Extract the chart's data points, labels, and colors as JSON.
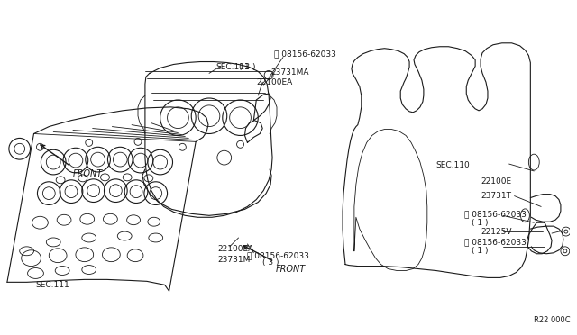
{
  "background_color": "#ffffff",
  "line_color": "#1a1a1a",
  "fig_width": 6.4,
  "fig_height": 3.72,
  "dpi": 100,
  "annotations": {
    "b_bolt_top": "Ⓑ 08156-62033",
    "sec111_top": "SEC.111",
    "qty3_top": "( 3 )",
    "part_23731MA": "23731MA",
    "part_22100EA_top": "22100EA",
    "sec111_bot": "SEC.111",
    "part_22100EA_bot": "22100EA",
    "part_23731M": "23731M",
    "b_bolt_bot": "Ⓑ 08156-62033",
    "qty3_bot": "( 3 )",
    "front_top": "FRONT",
    "front_bot": "FRONT",
    "sec110": "SEC.110",
    "part_22100E": "22100E",
    "part_23731T": "23731T",
    "b_bolt_r1": "Ⓑ 08156-62033",
    "qty1_r1": "( 1 )",
    "part_22125V": "22125V",
    "b_bolt_r2": "Ⓑ 08156-62033",
    "qty1_r2": "( 1 )",
    "watermark": "R22 000C"
  }
}
